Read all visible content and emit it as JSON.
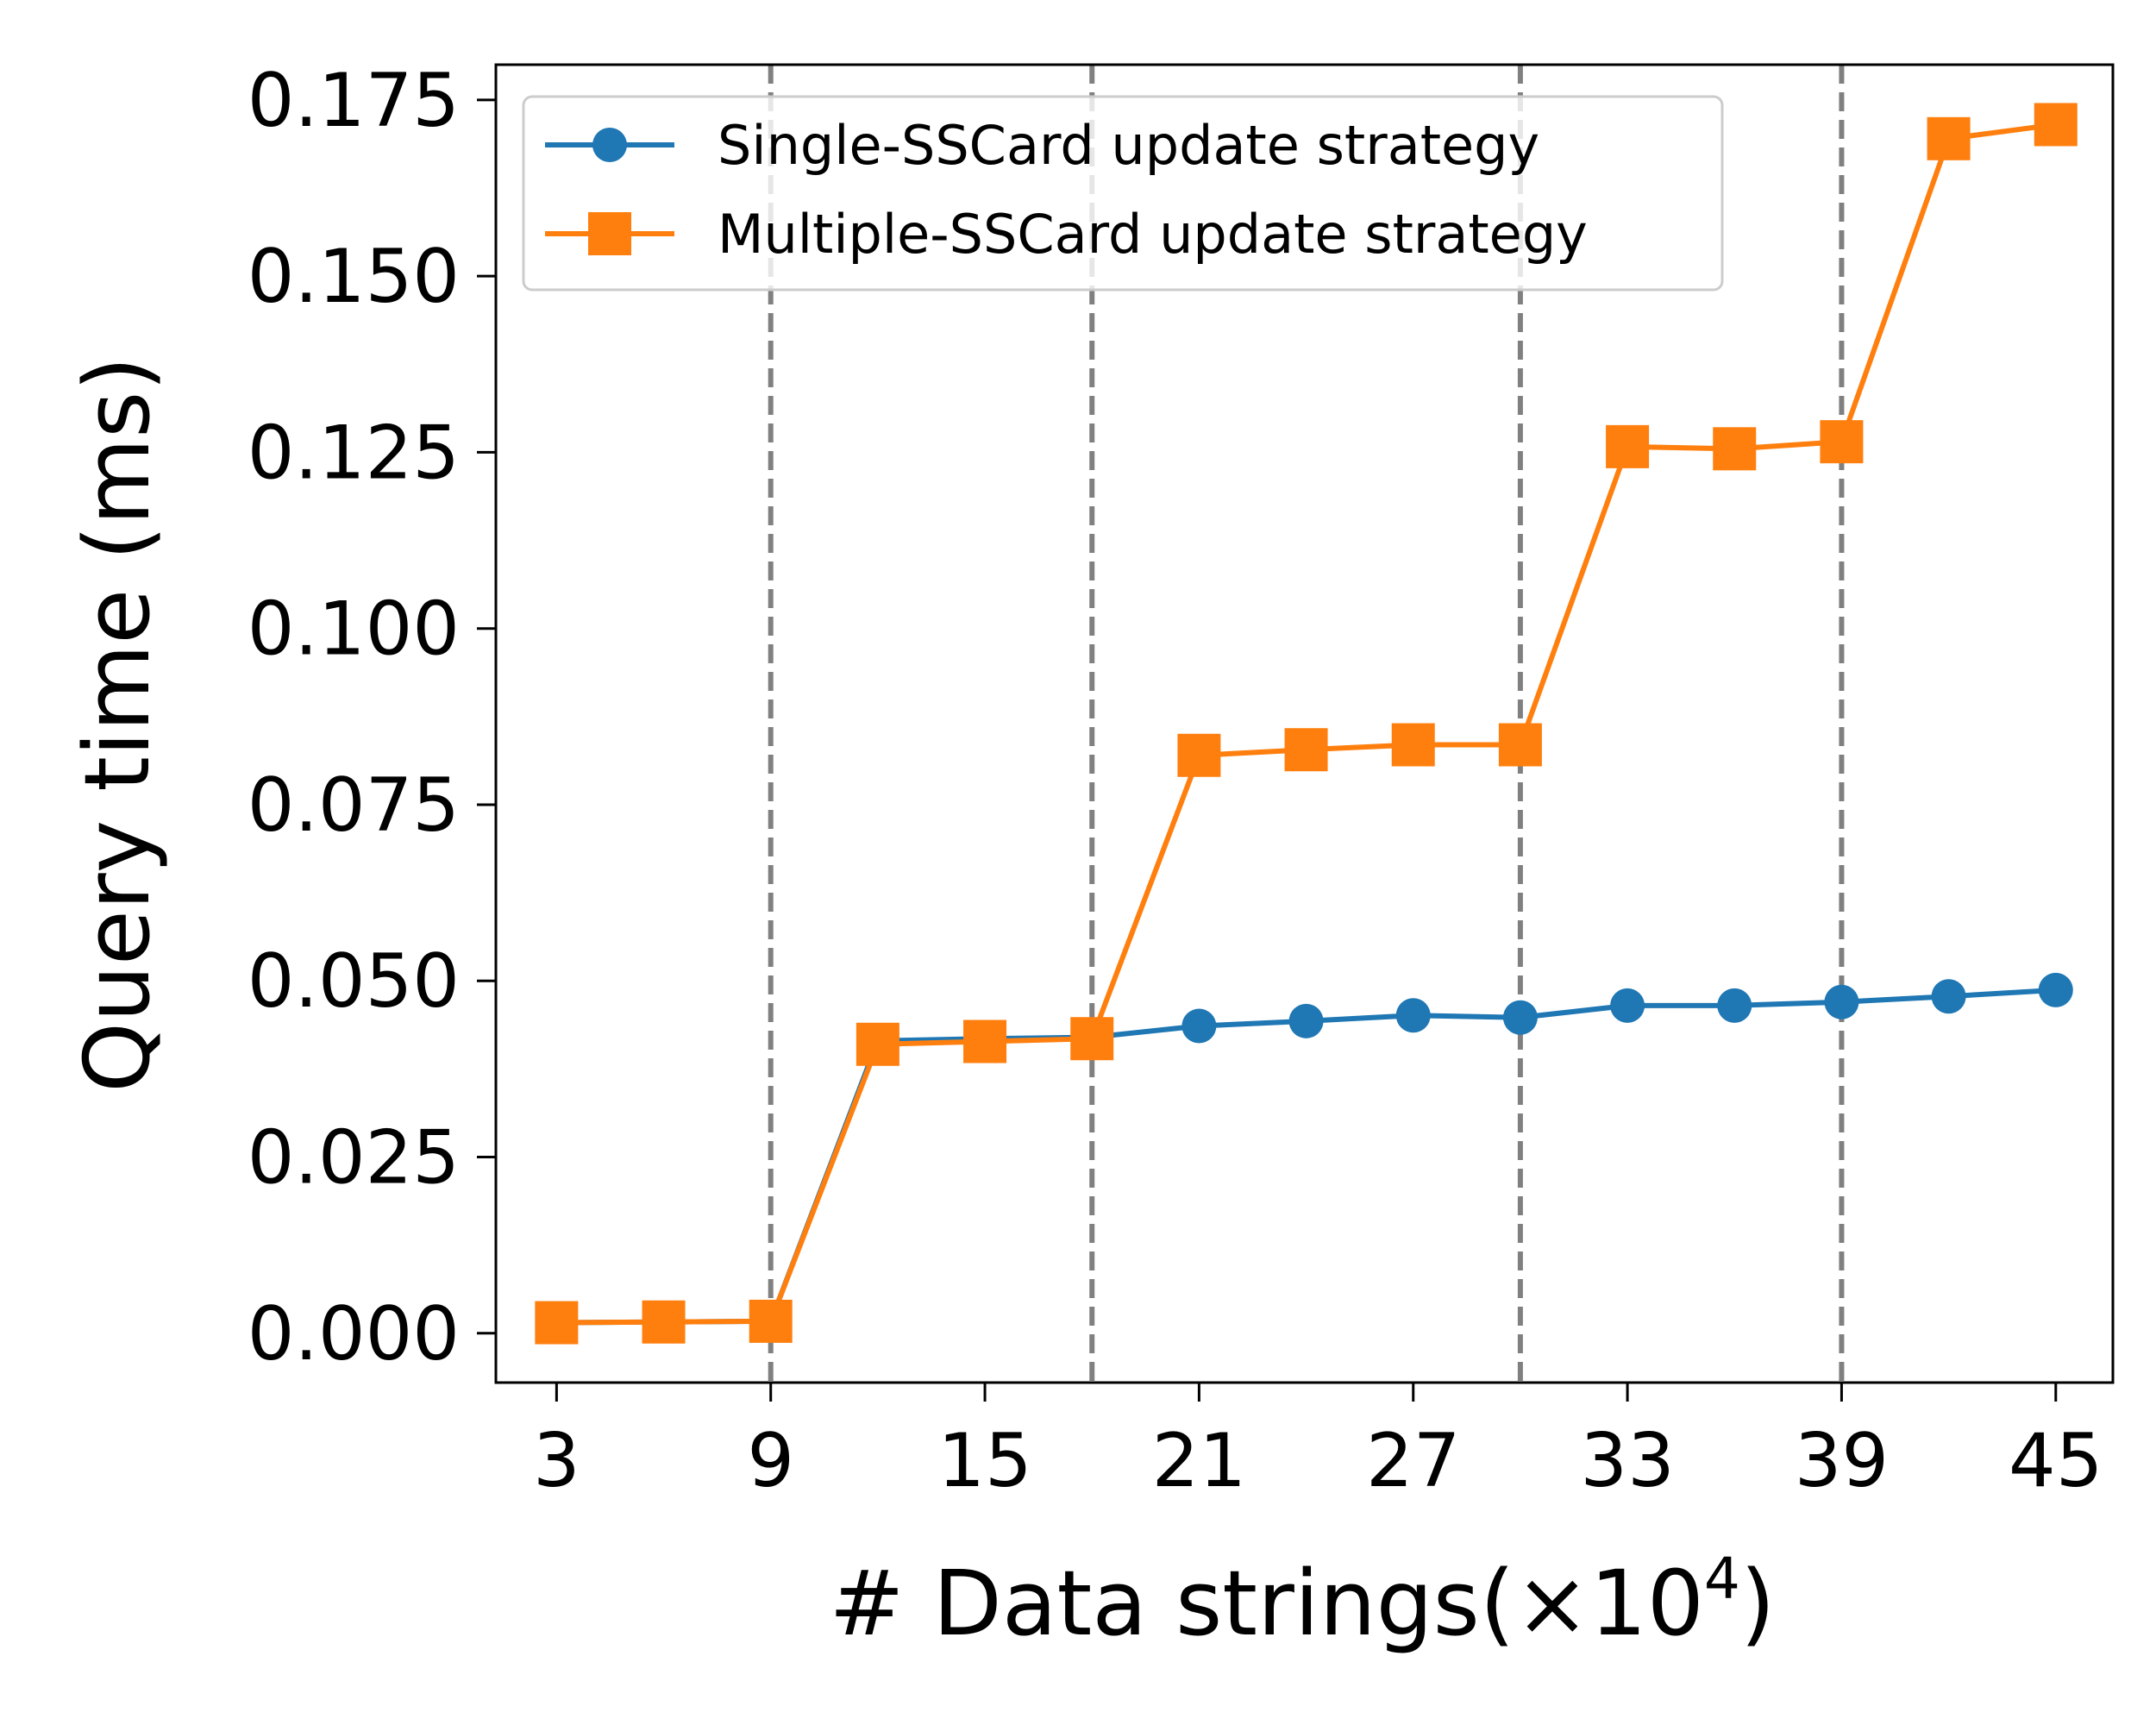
{
  "chart_data": {
    "type": "line",
    "xlabel": "# Data strings(×10",
    "xlabel_exponent": "4",
    "xlabel_suffix": ")",
    "ylabel": "Query time (ms)",
    "xlim": [
      1.3,
      46.6
    ],
    "ylim": [
      -0.007,
      0.18
    ],
    "xticks": [
      3,
      9,
      15,
      21,
      27,
      33,
      39,
      45
    ],
    "xtick_labels": [
      "3",
      "9",
      "15",
      "21",
      "27",
      "33",
      "39",
      "45"
    ],
    "yticks": [
      0.0,
      0.025,
      0.05,
      0.075,
      0.1,
      0.125,
      0.15,
      0.175
    ],
    "ytick_labels": [
      "0.000",
      "0.025",
      "0.050",
      "0.075",
      "0.100",
      "0.125",
      "0.150",
      "0.175"
    ],
    "vlines": [
      9,
      18,
      30,
      39
    ],
    "vline_color": "#808080",
    "grid": false,
    "legend_position": "upper-left",
    "x": [
      3,
      6,
      9,
      12,
      15,
      18,
      21,
      24,
      27,
      30,
      33,
      36,
      39,
      42,
      45
    ],
    "series": [
      {
        "name": "Single-SSCard update strategy",
        "color": "#1f77b4",
        "marker": "circle",
        "values": [
          0.0015,
          0.0016,
          0.0017,
          0.0415,
          0.0418,
          0.042,
          0.0436,
          0.0443,
          0.0451,
          0.0448,
          0.0465,
          0.0465,
          0.047,
          0.0478,
          0.0487
        ]
      },
      {
        "name": "Multiple-SSCard update strategy",
        "color": "#ff7f0e",
        "marker": "square",
        "values": [
          0.0015,
          0.0016,
          0.0017,
          0.041,
          0.0414,
          0.0418,
          0.082,
          0.0828,
          0.0835,
          0.0835,
          0.1258,
          0.1255,
          0.1265,
          0.1695,
          0.1715
        ]
      }
    ]
  }
}
